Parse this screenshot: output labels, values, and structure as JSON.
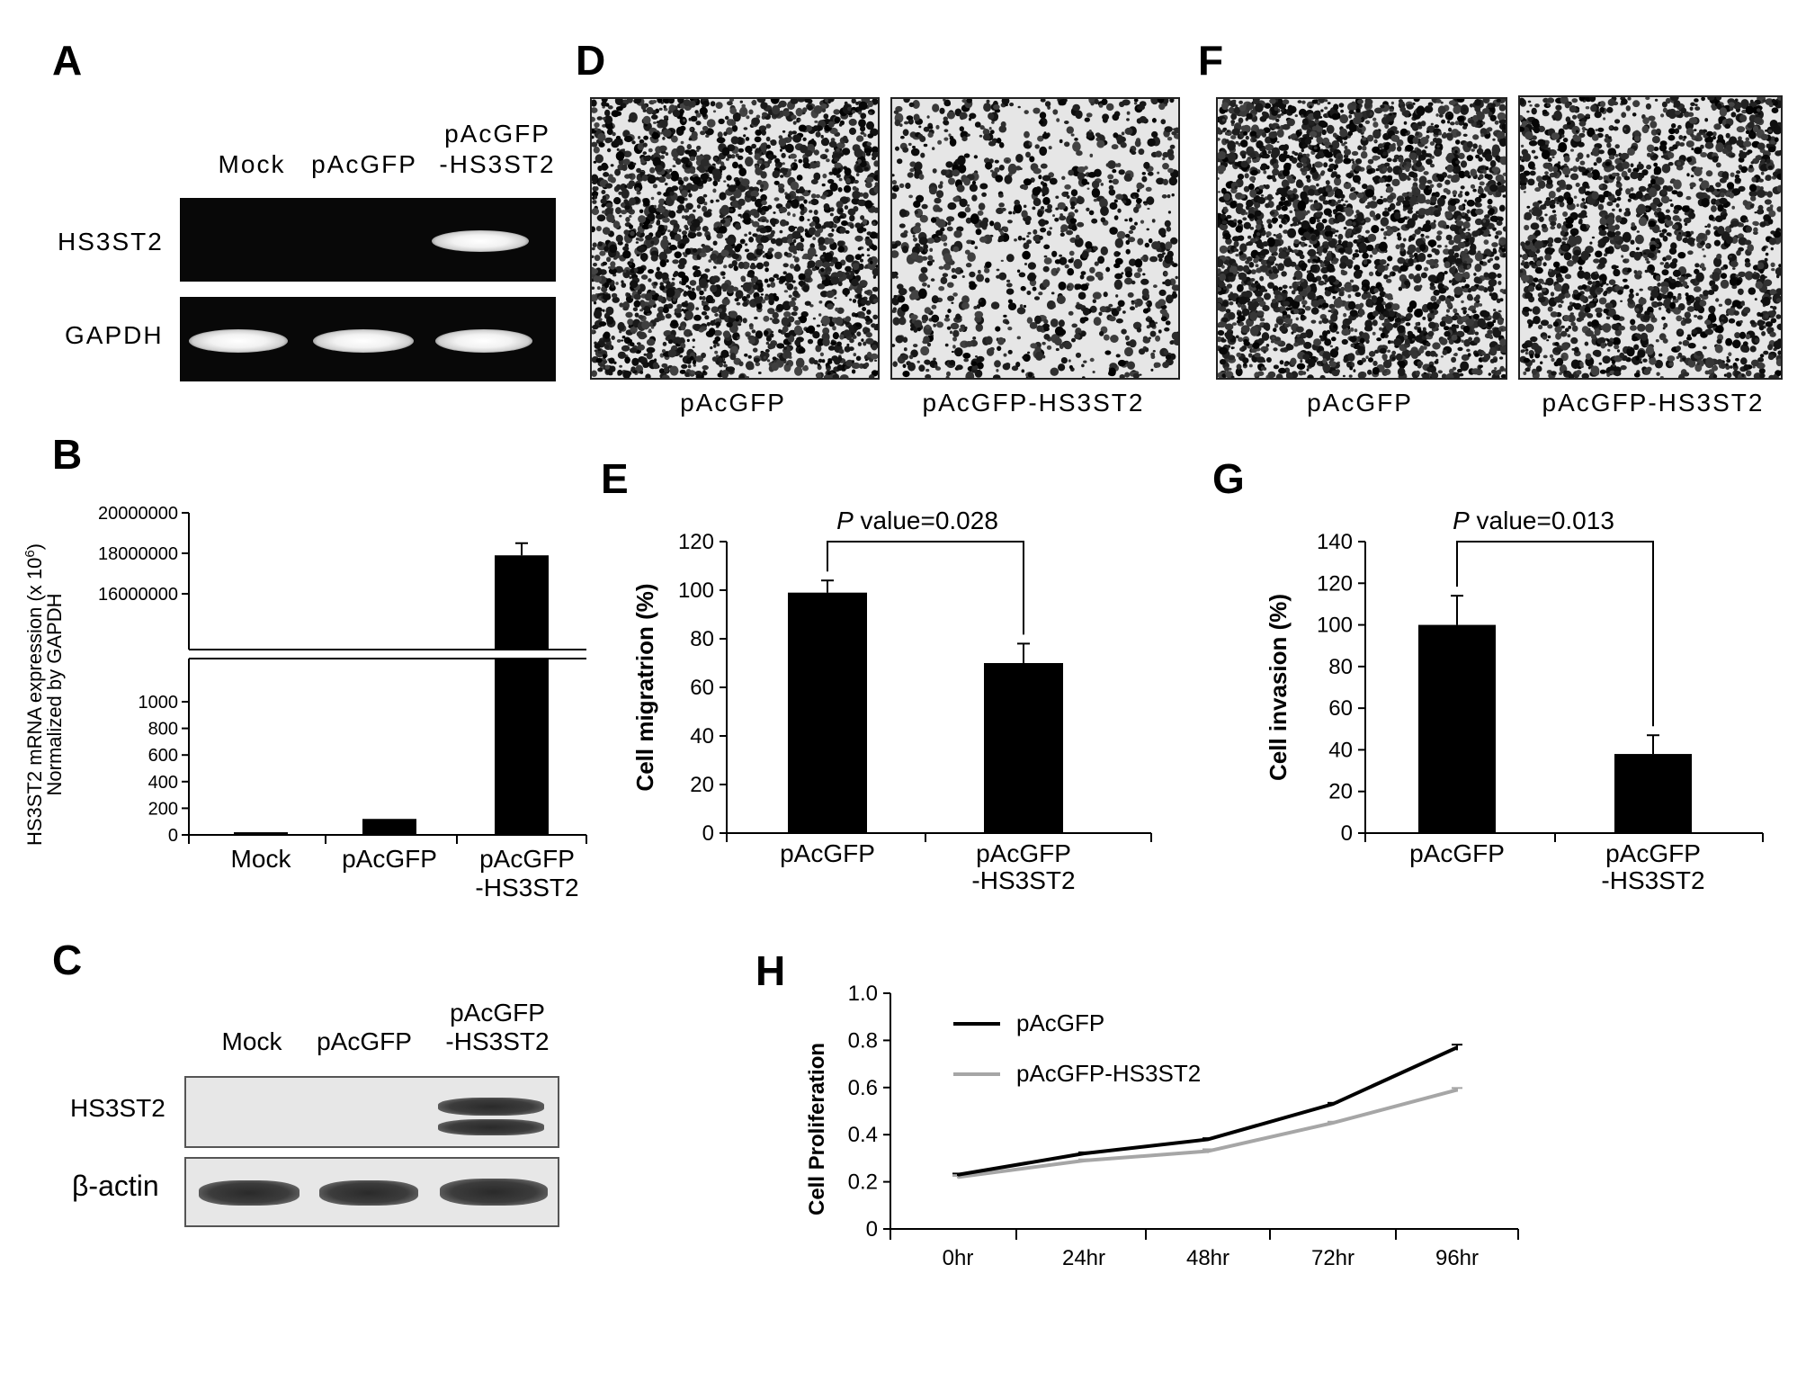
{
  "panels": {
    "A": {
      "letter": "A",
      "lanes": [
        "Mock",
        "pAcGFP",
        "pAcGFP\n-HS3ST2"
      ],
      "rows": [
        "HS3ST2",
        "GAPDH"
      ]
    },
    "B": {
      "letter": "B",
      "ylabel_line1": "HS3ST2 mRNA expression (x 10",
      "ylabel_sup": "6",
      "ylabel_close": ")",
      "ylabel_line2": "Normalized by GAPDH"
    },
    "C": {
      "letter": "C",
      "lanes": [
        "Mock",
        "pAcGFP",
        "pAcGFP\n-HS3ST2"
      ],
      "rows": [
        "HS3ST2",
        "β-actin"
      ]
    },
    "D": {
      "letter": "D",
      "captions": [
        "pAcGFP",
        "pAcGFP-HS3ST2"
      ]
    },
    "E": {
      "letter": "E",
      "pvalue_italic": "P",
      "pvalue_text": " value=0.028"
    },
    "F": {
      "letter": "F",
      "captions": [
        "pAcGFP",
        "pAcGFP-HS3ST2"
      ]
    },
    "G": {
      "letter": "G",
      "pvalue_italic": "P",
      "pvalue_text": " value=0.013"
    },
    "H": {
      "letter": "H"
    }
  },
  "chart_data": [
    {
      "panel": "B",
      "type": "bar",
      "categories": [
        "Mock",
        "pAcGFP",
        "pAcGFP\n-HS3ST2"
      ],
      "values": [
        20,
        120,
        17900000
      ],
      "errors": [
        0,
        0,
        600000
      ],
      "ylabel": "HS3ST2 mRNA expression (x 10^6) Normalized by GAPDH",
      "axis_break": true,
      "yticks_lower": [
        "0",
        "200",
        "400",
        "600",
        "800",
        "1000"
      ],
      "yticks_upper": [
        "16000000",
        "18000000",
        "20000000"
      ],
      "color": "#000000"
    },
    {
      "panel": "E",
      "type": "bar",
      "categories": [
        "pAcGFP",
        "pAcGFP\n-HS3ST2"
      ],
      "values": [
        99,
        70
      ],
      "errors": [
        5,
        8
      ],
      "ylabel": "Cell migratrion (%)",
      "ylim": [
        0,
        120
      ],
      "yticks": [
        "0",
        "20",
        "40",
        "60",
        "80",
        "100",
        "120"
      ],
      "annotation": "P value=0.028",
      "color": "#000000"
    },
    {
      "panel": "G",
      "type": "bar",
      "categories": [
        "pAcGFP",
        "pAcGFP\n-HS3ST2"
      ],
      "values": [
        100,
        38
      ],
      "errors": [
        14,
        9
      ],
      "ylabel": "Cell invasion (%)",
      "ylim": [
        0,
        140
      ],
      "yticks": [
        "0",
        "20",
        "40",
        "60",
        "80",
        "100",
        "120",
        "140"
      ],
      "annotation": "P value=0.013",
      "color": "#000000"
    },
    {
      "panel": "H",
      "type": "line",
      "categories": [
        "0hr",
        "24hr",
        "48hr",
        "72hr",
        "96hr"
      ],
      "ylabel": "Cell Proliferation",
      "ylim": [
        0,
        1.0
      ],
      "yticks": [
        "0",
        "0.2",
        "0.4",
        "0.6",
        "0.8",
        "1.0"
      ],
      "legend_position": "top-left",
      "series": [
        {
          "name": "pAcGFP",
          "values": [
            0.23,
            0.32,
            0.38,
            0.53,
            0.77
          ],
          "errors": [
            0.005,
            0.005,
            0.005,
            0.005,
            0.012
          ],
          "color": "#000000"
        },
        {
          "name": "pAcGFP-HS3ST2",
          "values": [
            0.22,
            0.29,
            0.33,
            0.45,
            0.59
          ],
          "errors": [
            0.005,
            0.005,
            0.008,
            0.005,
            0.008
          ],
          "color": "#a6a6a6"
        }
      ]
    }
  ]
}
